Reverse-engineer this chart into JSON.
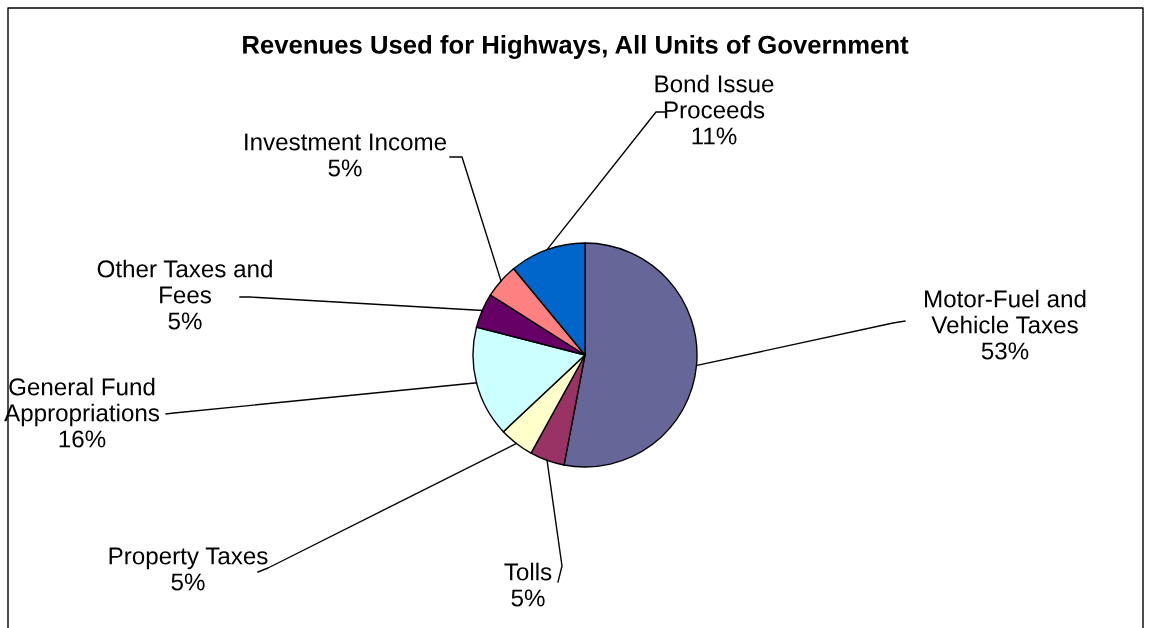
{
  "chart_data": {
    "type": "pie",
    "title": "Revenues Used for Highways, All Units of Government",
    "categories": [
      "Motor-Fuel and Vehicle Taxes",
      "Tolls",
      "Property Taxes",
      "General Fund Appropriations",
      "Other Taxes and Fees",
      "Investment Income",
      "Bond Issue Proceeds"
    ],
    "values": [
      53,
      5,
      5,
      16,
      5,
      5,
      11
    ],
    "colors": [
      "#666699",
      "#993366",
      "#ffffcc",
      "#ccffff",
      "#660066",
      "#ff8080",
      "#0066cc"
    ],
    "value_labels": [
      "53%",
      "5%",
      "5%",
      "16%",
      "5%",
      "5%",
      "11%"
    ],
    "legend": false
  }
}
